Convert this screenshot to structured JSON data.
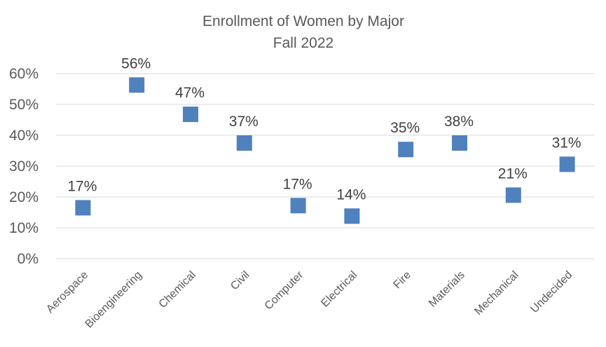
{
  "chart_data": {
    "type": "scatter",
    "title": "Enrollment of Women by Major",
    "subtitle": "Fall 2022",
    "xlabel": "",
    "ylabel": "",
    "categories": [
      "Aerospace",
      "Bioengineering",
      "Chemical",
      "Civil",
      "Computer",
      "Electrical",
      "Fire",
      "Materials",
      "Mechanical",
      "Undecided"
    ],
    "values": [
      16.5,
      56.3,
      46.8,
      37.5,
      17.2,
      13.8,
      35.4,
      37.5,
      20.6,
      30.6
    ],
    "data_labels": [
      "17%",
      "56%",
      "47%",
      "37%",
      "17%",
      "14%",
      "35%",
      "38%",
      "21%",
      "31%"
    ],
    "ylim": [
      0,
      60
    ],
    "yticks": [
      "0%",
      "10%",
      "20%",
      "30%",
      "40%",
      "50%",
      "60%"
    ],
    "grid": true,
    "legend": "none",
    "marker": "square",
    "color": "#4f81bd"
  }
}
